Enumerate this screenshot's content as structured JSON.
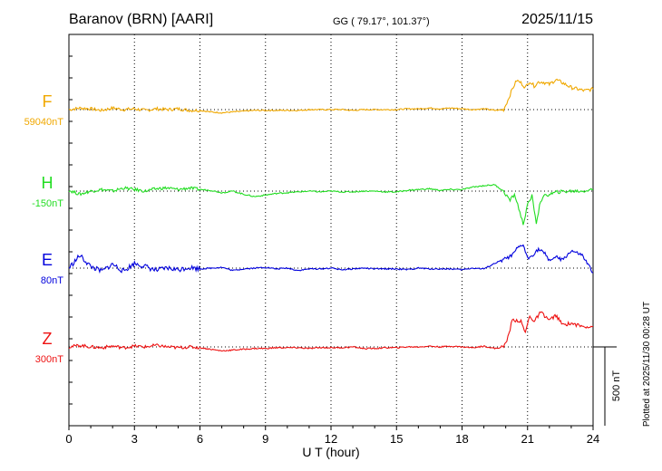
{
  "header": {
    "station": "Baranov (BRN)  [AARI]",
    "coords": "GG ( 79.17°, 101.37°)",
    "date": "2025/11/15"
  },
  "footer": {
    "plotted": "Plotted at 2025/11/30 00:28 UT"
  },
  "chart_data": {
    "type": "line",
    "xlabel": "U T (hour)",
    "x_ticks": [
      "0",
      "3",
      "6",
      "9",
      "12",
      "15",
      "18",
      "21",
      "24"
    ],
    "xlim": [
      0,
      24
    ],
    "scale_bar_label": "500 nT",
    "scale_bar_nT": 500,
    "series": [
      {
        "name": "F",
        "baseline": "59040nT",
        "color": "#f0a800",
        "baseline_nT": 59040,
        "points": [
          [
            0,
            0
          ],
          [
            0.5,
            10
          ],
          [
            1,
            5
          ],
          [
            1.5,
            -5
          ],
          [
            2,
            10
          ],
          [
            2.5,
            0
          ],
          [
            3,
            5
          ],
          [
            3.5,
            -5
          ],
          [
            4,
            5
          ],
          [
            4.5,
            0
          ],
          [
            5,
            5
          ],
          [
            5.5,
            -5
          ],
          [
            6,
            -5
          ],
          [
            6.5,
            -15
          ],
          [
            7,
            -20
          ],
          [
            7.5,
            -15
          ],
          [
            8,
            -10
          ],
          [
            8.5,
            -5
          ],
          [
            9,
            -5
          ],
          [
            9.5,
            -5
          ],
          [
            10,
            -5
          ],
          [
            10.5,
            -5
          ],
          [
            11,
            0
          ],
          [
            11.5,
            0
          ],
          [
            12,
            0
          ],
          [
            12.5,
            0
          ],
          [
            13,
            -5
          ],
          [
            13.5,
            0
          ],
          [
            14,
            0
          ],
          [
            14.5,
            0
          ],
          [
            15,
            0
          ],
          [
            15.5,
            5
          ],
          [
            16,
            5
          ],
          [
            16.5,
            10
          ],
          [
            17,
            5
          ],
          [
            17.5,
            10
          ],
          [
            18,
            5
          ],
          [
            18.5,
            0
          ],
          [
            19,
            5
          ],
          [
            19.5,
            -5
          ],
          [
            19.9,
            0
          ],
          [
            20.1,
            60
          ],
          [
            20.3,
            130
          ],
          [
            20.5,
            185
          ],
          [
            20.7,
            170
          ],
          [
            20.9,
            140
          ],
          [
            21.1,
            180
          ],
          [
            21.3,
            150
          ],
          [
            21.5,
            175
          ],
          [
            21.7,
            175
          ],
          [
            22,
            160
          ],
          [
            22.3,
            190
          ],
          [
            22.6,
            170
          ],
          [
            23,
            140
          ],
          [
            23.3,
            130
          ],
          [
            23.6,
            120
          ],
          [
            24,
            130
          ]
        ]
      },
      {
        "name": "H",
        "baseline": "-150nT",
        "color": "#22dd22",
        "baseline_nT": -150,
        "points": [
          [
            0,
            5
          ],
          [
            0.5,
            -20
          ],
          [
            1,
            0
          ],
          [
            1.5,
            10
          ],
          [
            2,
            0
          ],
          [
            2.5,
            20
          ],
          [
            3,
            10
          ],
          [
            3.5,
            0
          ],
          [
            4,
            15
          ],
          [
            4.5,
            20
          ],
          [
            5,
            10
          ],
          [
            5.5,
            20
          ],
          [
            6,
            10
          ],
          [
            6.5,
            5
          ],
          [
            7,
            -10
          ],
          [
            7.5,
            0
          ],
          [
            8,
            -20
          ],
          [
            8.5,
            -35
          ],
          [
            9,
            -25
          ],
          [
            9.5,
            -15
          ],
          [
            10,
            -10
          ],
          [
            10.5,
            -5
          ],
          [
            11,
            0
          ],
          [
            11.5,
            -5
          ],
          [
            12,
            0
          ],
          [
            12.5,
            -5
          ],
          [
            13,
            -5
          ],
          [
            13.5,
            0
          ],
          [
            14,
            0
          ],
          [
            14.5,
            -5
          ],
          [
            15,
            -5
          ],
          [
            15.5,
            5
          ],
          [
            16,
            10
          ],
          [
            16.5,
            15
          ],
          [
            17,
            5
          ],
          [
            17.5,
            10
          ],
          [
            18,
            10
          ],
          [
            18.5,
            25
          ],
          [
            19,
            35
          ],
          [
            19.5,
            40
          ],
          [
            19.8,
            10
          ],
          [
            20,
            -20
          ],
          [
            20.2,
            -60
          ],
          [
            20.4,
            -20
          ],
          [
            20.6,
            -110
          ],
          [
            20.8,
            -210
          ],
          [
            21,
            -90
          ],
          [
            21.2,
            -30
          ],
          [
            21.4,
            -200
          ],
          [
            21.6,
            -60
          ],
          [
            21.8,
            -30
          ],
          [
            22,
            -20
          ],
          [
            22.4,
            -5
          ],
          [
            23,
            0
          ],
          [
            23.5,
            0
          ],
          [
            24,
            10
          ]
        ]
      },
      {
        "name": "E",
        "baseline": "80nT",
        "color": "#0000dd",
        "baseline_nT": 80,
        "points": [
          [
            0,
            0
          ],
          [
            0.5,
            80
          ],
          [
            1,
            10
          ],
          [
            1.5,
            -20
          ],
          [
            2,
            25
          ],
          [
            2.5,
            -20
          ],
          [
            3,
            30
          ],
          [
            3.5,
            10
          ],
          [
            4,
            -15
          ],
          [
            4.5,
            0
          ],
          [
            5,
            -10
          ],
          [
            5.5,
            5
          ],
          [
            6,
            -5
          ],
          [
            6.5,
            0
          ],
          [
            7,
            5
          ],
          [
            7.5,
            -15
          ],
          [
            8,
            -5
          ],
          [
            8.5,
            0
          ],
          [
            9,
            5
          ],
          [
            9.5,
            -5
          ],
          [
            10,
            0
          ],
          [
            10.5,
            -15
          ],
          [
            11,
            -5
          ],
          [
            11.5,
            -5
          ],
          [
            12,
            0
          ],
          [
            12.5,
            -10
          ],
          [
            13,
            -5
          ],
          [
            13.5,
            0
          ],
          [
            14,
            -5
          ],
          [
            14.5,
            -5
          ],
          [
            15,
            -5
          ],
          [
            15.5,
            -10
          ],
          [
            16,
            0
          ],
          [
            16.5,
            -5
          ],
          [
            17,
            -5
          ],
          [
            17.5,
            -5
          ],
          [
            18,
            -10
          ],
          [
            18.5,
            0
          ],
          [
            19,
            -5
          ],
          [
            19.5,
            30
          ],
          [
            20,
            60
          ],
          [
            20.3,
            80
          ],
          [
            20.5,
            120
          ],
          [
            20.8,
            150
          ],
          [
            21,
            60
          ],
          [
            21.2,
            80
          ],
          [
            21.5,
            120
          ],
          [
            21.8,
            90
          ],
          [
            22,
            50
          ],
          [
            22.3,
            70
          ],
          [
            22.6,
            50
          ],
          [
            23,
            110
          ],
          [
            23.5,
            80
          ],
          [
            24,
            -30
          ]
        ]
      },
      {
        "name": "Z",
        "baseline": "300nT",
        "color": "#ee1111",
        "baseline_nT": 300,
        "points": [
          [
            0,
            0
          ],
          [
            0.5,
            10
          ],
          [
            1,
            0
          ],
          [
            1.5,
            -5
          ],
          [
            2,
            5
          ],
          [
            2.5,
            -5
          ],
          [
            3,
            5
          ],
          [
            3.5,
            0
          ],
          [
            4,
            10
          ],
          [
            4.5,
            0
          ],
          [
            5,
            -5
          ],
          [
            5.5,
            0
          ],
          [
            6,
            -5
          ],
          [
            6.5,
            -15
          ],
          [
            7,
            -25
          ],
          [
            7.5,
            -20
          ],
          [
            8,
            -15
          ],
          [
            8.5,
            -10
          ],
          [
            9,
            -10
          ],
          [
            9.5,
            -5
          ],
          [
            10,
            -5
          ],
          [
            10.5,
            -5
          ],
          [
            11,
            -10
          ],
          [
            11.5,
            -5
          ],
          [
            12,
            -5
          ],
          [
            12.5,
            -5
          ],
          [
            13,
            0
          ],
          [
            13.5,
            -10
          ],
          [
            14,
            -10
          ],
          [
            14.5,
            -5
          ],
          [
            15,
            -5
          ],
          [
            15.5,
            0
          ],
          [
            16,
            0
          ],
          [
            16.5,
            5
          ],
          [
            17,
            0
          ],
          [
            17.5,
            5
          ],
          [
            18,
            0
          ],
          [
            18.5,
            -5
          ],
          [
            19,
            5
          ],
          [
            19.5,
            -10
          ],
          [
            19.9,
            0
          ],
          [
            20.1,
            60
          ],
          [
            20.3,
            170
          ],
          [
            20.5,
            170
          ],
          [
            20.7,
            160
          ],
          [
            20.9,
            90
          ],
          [
            21.1,
            200
          ],
          [
            21.3,
            160
          ],
          [
            21.6,
            220
          ],
          [
            22,
            170
          ],
          [
            22.3,
            200
          ],
          [
            22.6,
            140
          ],
          [
            23,
            150
          ],
          [
            23.5,
            130
          ],
          [
            24,
            130
          ]
        ]
      }
    ]
  }
}
